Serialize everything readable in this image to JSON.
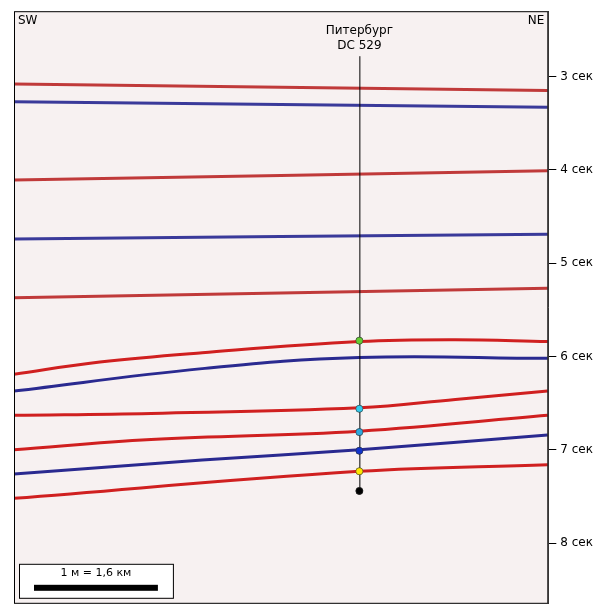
{
  "chart_data": {
    "type": "seismic_section",
    "side_labels": {
      "left": "SW",
      "right": "NE"
    },
    "xlim": [
      0,
      6.9
    ],
    "ylim": [
      2.3,
      8.65
    ],
    "yticks": [
      {
        "value": 3,
        "label": "3 сек"
      },
      {
        "value": 4,
        "label": "4 сек"
      },
      {
        "value": 5,
        "label": "5 сек"
      },
      {
        "value": 6,
        "label": "6 сек"
      },
      {
        "value": 7,
        "label": "7 сек"
      },
      {
        "value": 8,
        "label": "8 сек"
      }
    ],
    "tick_labels": "y",
    "grid": false,
    "well": {
      "name": "Питербург",
      "id": "DC 529",
      "x": 4.46,
      "markers": [
        {
          "t": 5.83,
          "color": "#66cc33"
        },
        {
          "t": 6.56,
          "color": "#33ccee"
        },
        {
          "t": 6.81,
          "color": "#2fa8dd"
        },
        {
          "t": 7.01,
          "color": "#1133cc"
        },
        {
          "t": 7.23,
          "color": "#ffe600"
        },
        {
          "t": 7.44,
          "color": "#000000"
        }
      ]
    },
    "horizons": [
      {
        "color": "#c03a3a",
        "x": [
          0,
          6.89
        ],
        "t": [
          3.08,
          3.15
        ]
      },
      {
        "color": "#3a3a9a",
        "x": [
          0,
          6.89
        ],
        "t": [
          3.27,
          3.33
        ]
      },
      {
        "color": "#c03a3a",
        "x": [
          0,
          6.89
        ],
        "t": [
          4.11,
          4.01
        ]
      },
      {
        "color": "#3a3a9a",
        "x": [
          0,
          6.89
        ],
        "t": [
          4.74,
          4.69
        ]
      },
      {
        "color": "#c03a3a",
        "x": [
          0,
          6.89
        ],
        "t": [
          5.37,
          5.27
        ]
      },
      {
        "color": "#d02020",
        "x": [
          0,
          1.11,
          2.43,
          4.46,
          5.7,
          6.89
        ],
        "t": [
          6.19,
          6.06,
          5.96,
          5.84,
          5.82,
          5.84
        ]
      },
      {
        "color": "#2a2a90",
        "x": [
          0,
          2.43,
          4.46,
          6.89
        ],
        "t": [
          6.37,
          6.13,
          6.01,
          6.02
        ]
      },
      {
        "color": "#d02020",
        "x": [
          0,
          1.77,
          4.46,
          5.7,
          6.89
        ],
        "t": [
          6.63,
          6.61,
          6.55,
          6.46,
          6.37
        ]
      },
      {
        "color": "#d02020",
        "x": [
          0,
          1.77,
          4.46,
          6.89
        ],
        "t": [
          7.0,
          6.89,
          6.8,
          6.63
        ]
      },
      {
        "color": "#2a2a90",
        "x": [
          0,
          2.43,
          4.46,
          6.89
        ],
        "t": [
          7.26,
          7.11,
          7.0,
          6.84
        ]
      },
      {
        "color": "#d02020",
        "x": [
          0,
          4.46,
          6.89
        ],
        "t": [
          7.52,
          7.23,
          7.16
        ]
      }
    ],
    "scale_bar": {
      "label": "1 м = 1,6 км",
      "length": 1.6
    }
  }
}
